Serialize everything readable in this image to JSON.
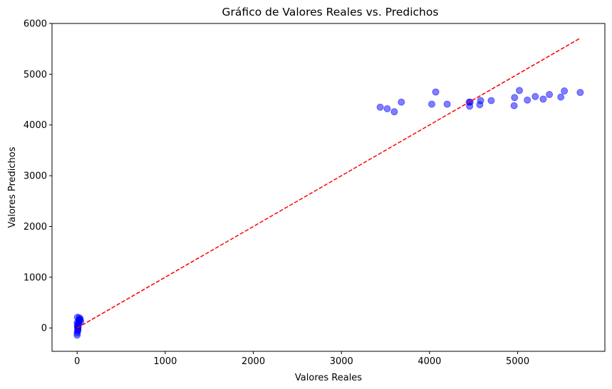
{
  "chart_data": {
    "type": "scatter",
    "title": "Gráfico de Valores Reales vs. Predichos",
    "xlabel": "Valores Reales",
    "ylabel": "Valores Predichos",
    "xlim": [
      -285,
      5990
    ],
    "ylim": [
      -460,
      6000
    ],
    "xticks": [
      0,
      1000,
      2000,
      3000,
      4000,
      5000
    ],
    "yticks": [
      0,
      1000,
      2000,
      3000,
      4000,
      5000,
      6000
    ],
    "grid": false,
    "point_color": "#0000ff",
    "point_opacity": 0.5,
    "reference_line": {
      "style": "dashed",
      "color": "#ff0000",
      "x": [
        0,
        5710
      ],
      "y": [
        0,
        5710
      ]
    },
    "series": [
      {
        "x": [
          3440,
          3520,
          3600,
          3680,
          4025,
          4070,
          4200,
          4450,
          4455,
          4460,
          4570,
          4580,
          4700,
          4960,
          4965,
          5020,
          5110,
          5200,
          5290,
          5360,
          5490,
          5530,
          5710,
          0,
          2,
          5,
          8,
          10,
          12,
          15,
          18,
          20,
          25,
          30,
          35,
          40,
          3,
          6,
          9,
          1,
          4
        ],
        "y": [
          4350,
          4320,
          4260,
          4450,
          4410,
          4650,
          4410,
          4450,
          4370,
          4450,
          4400,
          4480,
          4480,
          4380,
          4540,
          4680,
          4490,
          4560,
          4510,
          4600,
          4550,
          4670,
          4640,
          -140,
          -100,
          -60,
          -20,
          10,
          40,
          80,
          120,
          160,
          200,
          150,
          180,
          130,
          20,
          60,
          -40,
          100,
          210
        ]
      }
    ]
  }
}
